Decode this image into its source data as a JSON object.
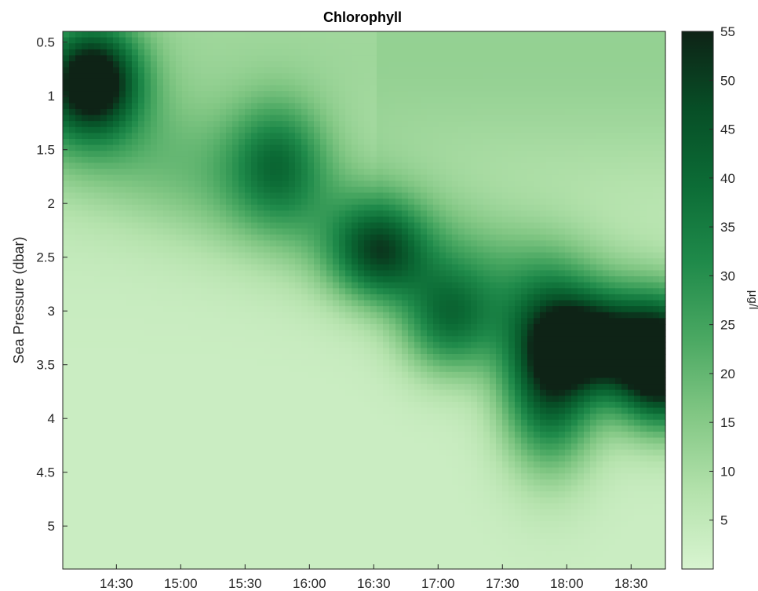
{
  "chart_data": {
    "type": "heatmap",
    "title": "Chlorophyll",
    "ylabel": "Sea Pressure (dbar)",
    "colorbar_label": "μg/l",
    "x_ticks": [
      "14:30",
      "15:00",
      "15:30",
      "16:00",
      "16:30",
      "17:00",
      "17:30",
      "18:00",
      "18:30"
    ],
    "x_range": [
      "14:05",
      "18:46"
    ],
    "y_ticks": [
      0.5,
      1,
      1.5,
      2,
      2.5,
      3,
      3.5,
      4,
      4.5,
      5
    ],
    "y_range": [
      0.4,
      5.4
    ],
    "y_reversed": true,
    "colorbar_ticks": [
      5,
      10,
      15,
      20,
      25,
      30,
      35,
      40,
      45,
      50,
      55
    ],
    "colorbar_range": [
      0,
      55
    ],
    "colormap": [
      "#d8f4d0",
      "#b4e2ac",
      "#82c784",
      "#4aa862",
      "#1f8a4a",
      "#0c6c36",
      "#074e26",
      "#0e2316"
    ],
    "grid": false,
    "features": [
      {
        "time": "14:19",
        "pressure_center": 0.85,
        "pressure_halfwidth": 0.5,
        "peak": 52
      },
      {
        "time": "15:45",
        "pressure_center": 1.6,
        "pressure_halfwidth": 0.55,
        "peak": 24
      },
      {
        "time": "16:32",
        "pressure_center": 2.45,
        "pressure_halfwidth": 0.45,
        "peak": 32
      },
      {
        "time": "17:05",
        "pressure_center": 3.1,
        "pressure_halfwidth": 0.5,
        "peak": 28
      },
      {
        "time": "17:52",
        "pressure_center": 3.6,
        "pressure_halfwidth": 0.8,
        "peak": 45
      },
      {
        "time": "18:12",
        "pressure_center": 3.3,
        "pressure_halfwidth": 0.4,
        "peak": 33
      },
      {
        "time": "18:43",
        "pressure_center": 3.5,
        "pressure_halfwidth": 0.55,
        "peak": 55
      }
    ]
  }
}
